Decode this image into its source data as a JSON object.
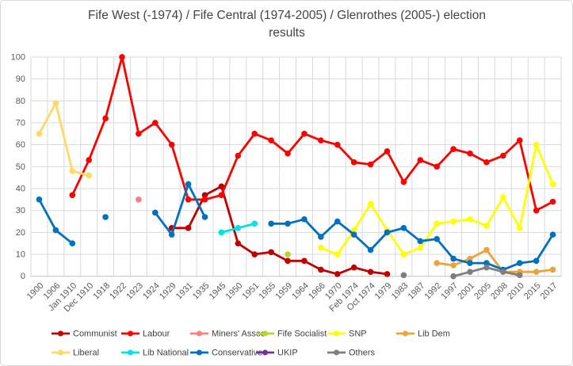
{
  "title_lines": [
    "Fife West (-1974) / Fife Central (1974-2005) / Glenrothes (2005-) election",
    "results"
  ],
  "chart_data": {
    "type": "line",
    "title": "Fife West (-1974) / Fife Central (1974-2005) / Glenrothes (2005-) election results",
    "grid": true,
    "legend_position": "bottom",
    "x_categories": [
      "1900",
      "1906",
      "Jan 1910",
      "Dec 1910",
      "1918",
      "1922",
      "1923",
      "1924",
      "1929",
      "1931",
      "1935",
      "1945",
      "1950",
      "1951",
      "1955",
      "1959",
      "1964",
      "1966",
      "1970",
      "Feb 1974",
      "Oct 1974",
      "1979",
      "1983",
      "1987",
      "1992",
      "1997",
      "2001",
      "2005",
      "2008",
      "2010",
      "2015",
      "2017"
    ],
    "y_axis": {
      "min": 0,
      "max": 100,
      "step": 10,
      "ticks": [
        0,
        10,
        20,
        30,
        40,
        50,
        60,
        70,
        80,
        90,
        100
      ],
      "label": ""
    },
    "series": [
      {
        "name": "Communist",
        "color": "#c00000",
        "values": [
          null,
          null,
          null,
          null,
          null,
          null,
          null,
          null,
          22,
          22,
          37,
          41,
          15,
          10,
          11,
          7,
          7,
          3,
          1,
          4,
          2,
          1,
          null,
          null,
          null,
          null,
          null,
          null,
          null,
          null,
          null,
          null
        ]
      },
      {
        "name": "Labour",
        "color": "#ff0000",
        "values": [
          null,
          null,
          37,
          53,
          72,
          100,
          65,
          70,
          60,
          35,
          35,
          37,
          55,
          65,
          62,
          56,
          65,
          62,
          60,
          52,
          51,
          57,
          43,
          53,
          50,
          58,
          56,
          52,
          55,
          62,
          30,
          34
        ]
      },
      {
        "name": "Miners' Assoc",
        "color": "#ff7c80",
        "values": [
          null,
          null,
          null,
          null,
          null,
          null,
          35,
          null,
          null,
          null,
          null,
          null,
          null,
          null,
          null,
          null,
          null,
          null,
          null,
          null,
          null,
          null,
          null,
          null,
          null,
          null,
          null,
          null,
          null,
          null,
          null,
          null
        ]
      },
      {
        "name": "Fife Socialist",
        "color": "#b8d432",
        "values": [
          null,
          null,
          null,
          null,
          null,
          null,
          null,
          null,
          null,
          null,
          null,
          null,
          null,
          null,
          null,
          10,
          null,
          null,
          null,
          null,
          null,
          null,
          null,
          null,
          null,
          null,
          null,
          null,
          null,
          null,
          null,
          null
        ]
      },
      {
        "name": "SNP",
        "color": "#ffff00",
        "values": [
          null,
          null,
          null,
          null,
          null,
          null,
          null,
          null,
          null,
          null,
          null,
          null,
          null,
          null,
          null,
          null,
          null,
          13,
          10,
          21,
          33,
          21,
          10,
          13,
          24,
          25,
          26,
          23,
          36,
          22,
          60,
          42
        ]
      },
      {
        "name": "Lib Dem",
        "color": "#eda33b",
        "values": [
          null,
          null,
          null,
          null,
          null,
          null,
          null,
          null,
          null,
          null,
          null,
          null,
          null,
          null,
          null,
          null,
          null,
          null,
          null,
          null,
          null,
          null,
          null,
          null,
          6,
          5,
          8,
          12,
          2,
          2,
          2,
          3
        ]
      },
      {
        "name": "Liberal",
        "color": "#ffd966",
        "values": [
          65,
          79,
          48,
          46,
          null,
          null,
          null,
          null,
          null,
          null,
          null,
          null,
          null,
          null,
          null,
          null,
          null,
          null,
          null,
          null,
          null,
          null,
          null,
          null,
          null,
          null,
          null,
          null,
          null,
          null,
          null,
          null
        ]
      },
      {
        "name": "Lib National",
        "color": "#00e3e3",
        "values": [
          null,
          null,
          null,
          null,
          null,
          null,
          null,
          null,
          null,
          null,
          null,
          20,
          22,
          24,
          null,
          null,
          null,
          null,
          null,
          null,
          null,
          null,
          null,
          null,
          null,
          null,
          null,
          null,
          null,
          null,
          null,
          null
        ]
      },
      {
        "name": "Conservative",
        "color": "#0070c0",
        "values": [
          35,
          21,
          15,
          null,
          27,
          null,
          null,
          29,
          19,
          42,
          27,
          null,
          null,
          null,
          24,
          24,
          26,
          18,
          25,
          19,
          12,
          20,
          22,
          16,
          17,
          8,
          6,
          6,
          3,
          6,
          7,
          19
        ]
      },
      {
        "name": "UKIP",
        "color": "#7030a0",
        "values": [
          null,
          null,
          null,
          null,
          null,
          null,
          null,
          null,
          null,
          null,
          null,
          null,
          null,
          null,
          null,
          null,
          null,
          null,
          null,
          null,
          null,
          null,
          null,
          null,
          null,
          null,
          null,
          null,
          null,
          null,
          null,
          null
        ]
      },
      {
        "name": "Others",
        "color": "#7f7f7f",
        "values": [
          null,
          null,
          null,
          null,
          null,
          null,
          null,
          null,
          null,
          null,
          null,
          null,
          null,
          null,
          null,
          null,
          null,
          null,
          null,
          null,
          null,
          null,
          0.5,
          null,
          null,
          0,
          2,
          4,
          2,
          0.5,
          null,
          null
        ]
      }
    ],
    "legend_rows": [
      [
        "Communist",
        "Labour",
        "Miners' Assoc",
        "Fife Socialist",
        "SNP",
        "Lib Dem"
      ],
      [
        "Liberal",
        "Lib National",
        "Conservative",
        "UKIP",
        "Others"
      ]
    ]
  }
}
